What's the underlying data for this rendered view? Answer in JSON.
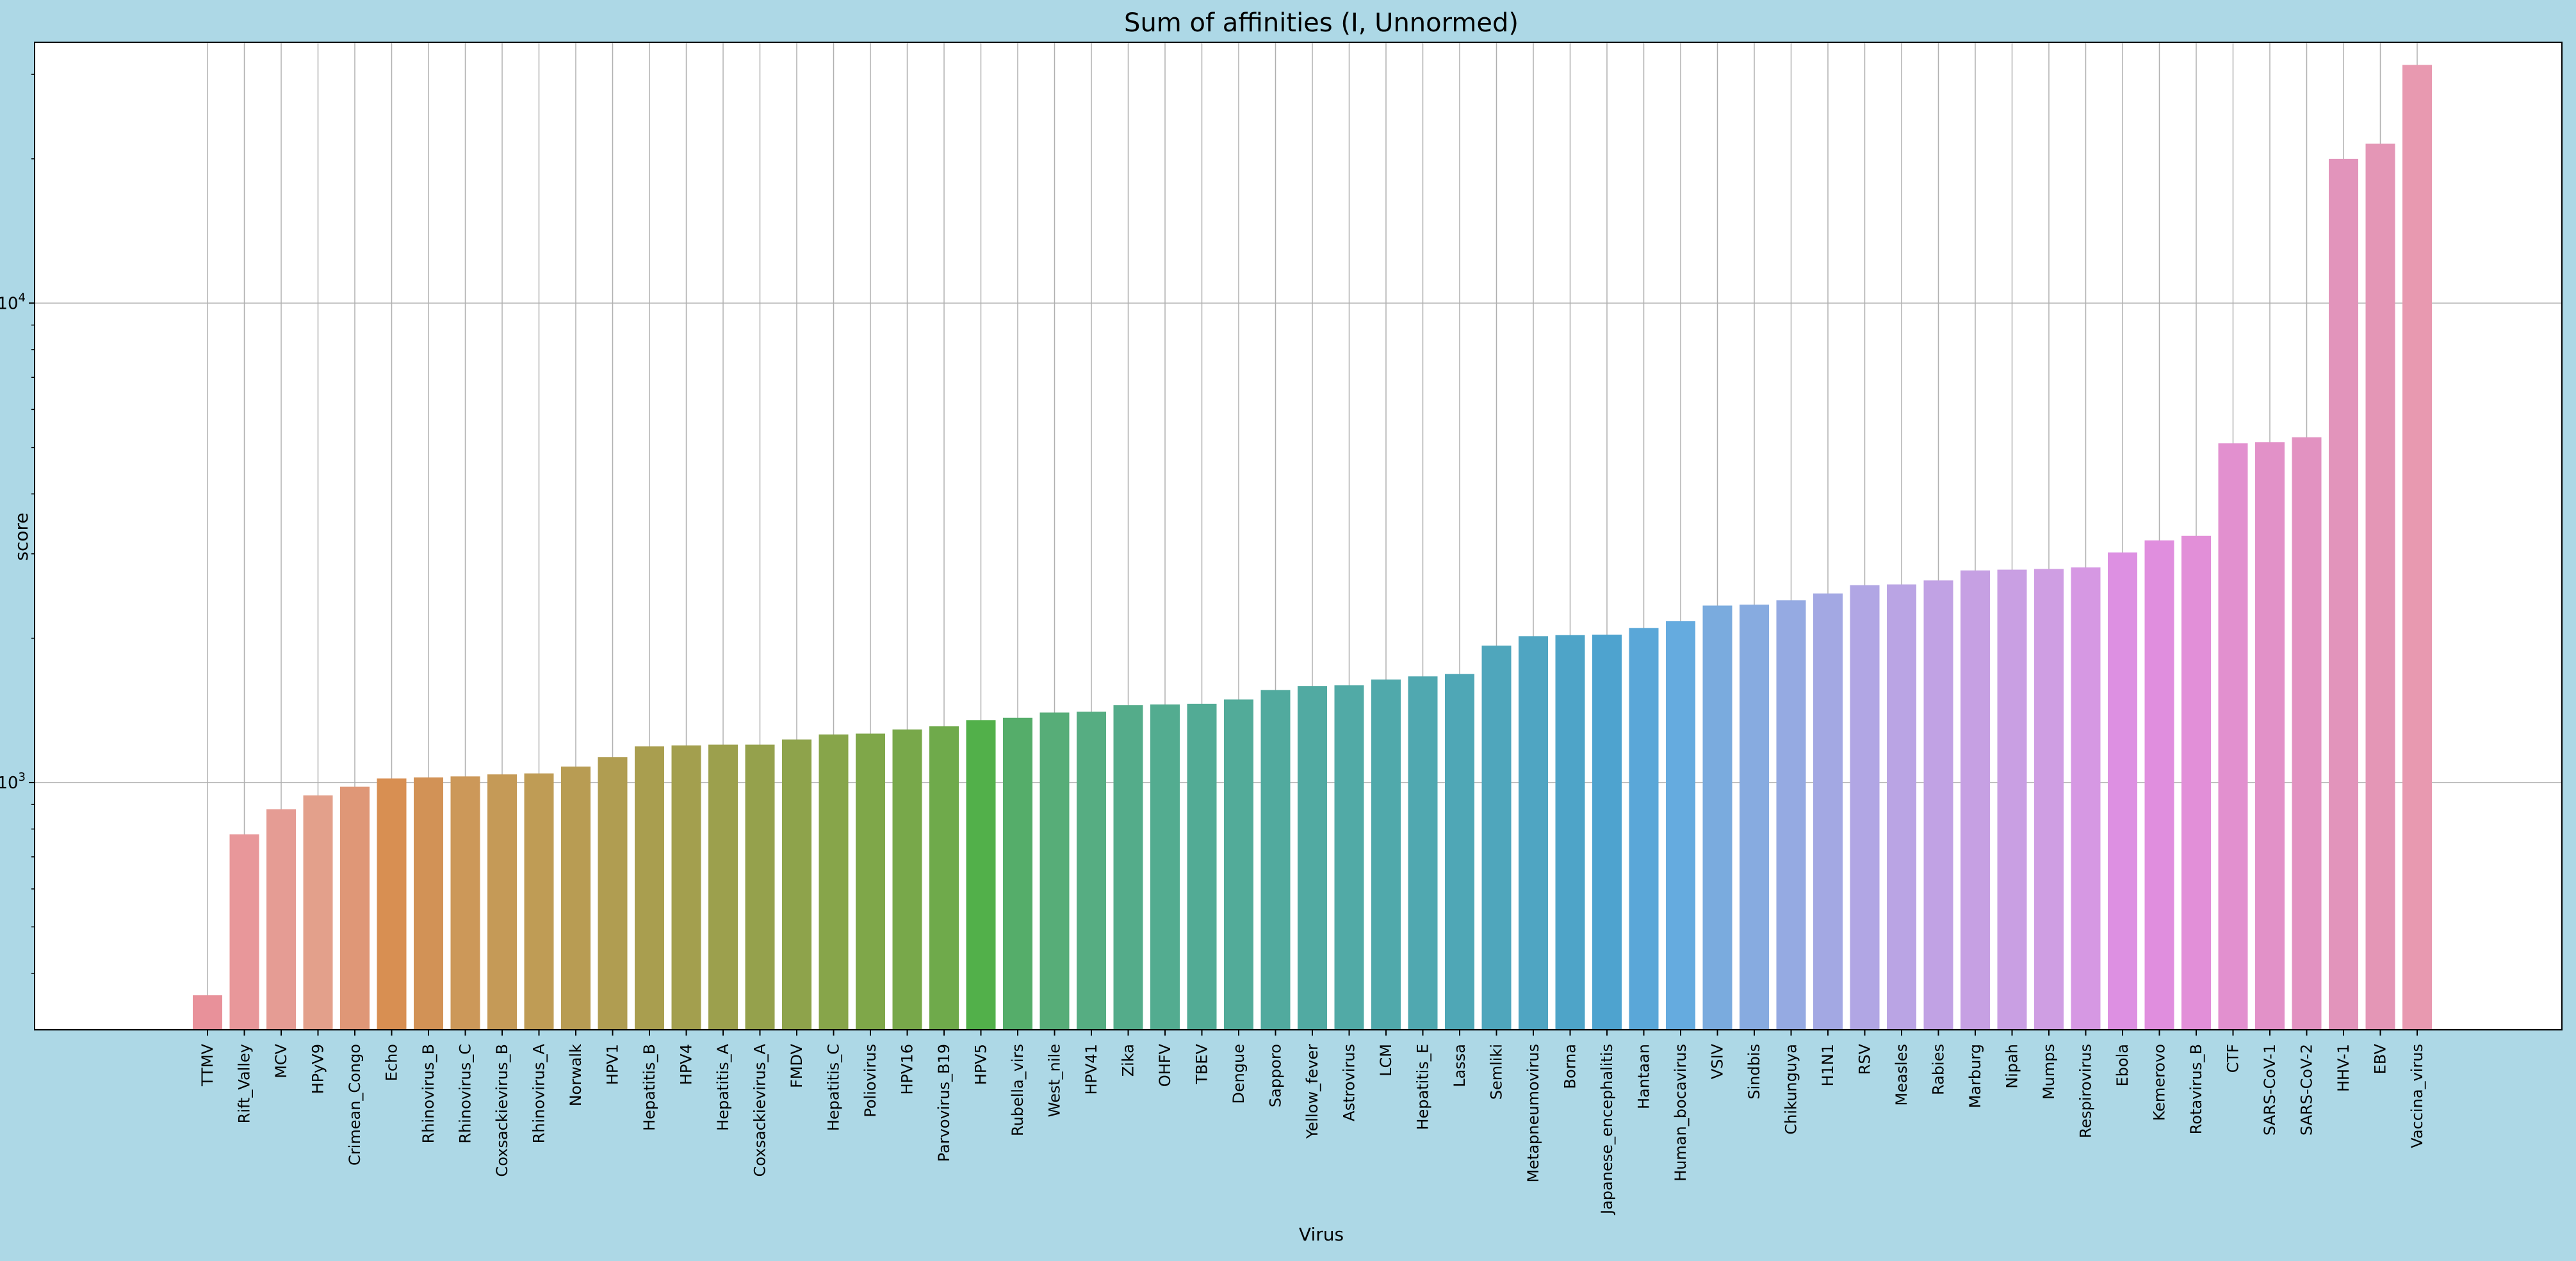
{
  "chart_data": {
    "type": "bar",
    "title": "Sum of affinities (I, Unnormed)",
    "xlabel": "Virus",
    "ylabel": "score",
    "yscale": "log",
    "ylim": [
      305,
      35000
    ],
    "yticks": [
      {
        "value": 1000,
        "base": "10",
        "exp": "3"
      },
      {
        "value": 10000,
        "base": "10",
        "exp": "4"
      }
    ],
    "grid": true,
    "background_color": "#add8e6",
    "plot_background_color": "#ffffff",
    "categories": [
      "TTMV",
      "Rift_Valley",
      "MCV",
      "HPyV9",
      "Crimean_Congo",
      "Echo",
      "Rhinovirus_B",
      "Rhinovirus_C",
      "Coxsackievirus_B",
      "Rhinovirus_A",
      "Norwalk",
      "HPV1",
      "Hepatitis_B",
      "HPV4",
      "Hepatitis_A",
      "Coxsackievirus_A",
      "FMDV",
      "Hepatitis_C",
      "Poliovirus",
      "HPV16",
      "Parvovirus_B19",
      "HPV5",
      "Rubella_virs",
      "West_nile",
      "HPV41",
      "Zika",
      "OHFV",
      "TBEV",
      "Dengue",
      "Sapporo",
      "Yellow_fever",
      "Astrovirus",
      "LCM",
      "Hepatitis_E",
      "Lassa",
      "Semliki",
      "Metapneumovirus",
      "Borna",
      "Japanese_encephalitis",
      "Hantaan",
      "Human_bocavirus",
      "VSIV",
      "Sindbis",
      "Chikunguya",
      "H1N1",
      "RSV",
      "Measles",
      "Rabies",
      "Marburg",
      "Nipah",
      "Mumps",
      "Respirovirus",
      "Ebola",
      "Kemerovo",
      "Rotavirus_B",
      "CTF",
      "SARS-CoV-1",
      "SARS-CoV-2",
      "HHV-1",
      "EBV",
      "Vaccina_virus"
    ],
    "values": [
      360,
      780,
      880,
      940,
      980,
      1020,
      1025,
      1030,
      1040,
      1045,
      1080,
      1130,
      1190,
      1195,
      1200,
      1200,
      1230,
      1260,
      1265,
      1290,
      1310,
      1350,
      1365,
      1400,
      1405,
      1450,
      1455,
      1460,
      1490,
      1560,
      1590,
      1595,
      1640,
      1665,
      1685,
      1930,
      2020,
      2030,
      2035,
      2100,
      2170,
      2340,
      2350,
      2400,
      2480,
      2580,
      2590,
      2640,
      2770,
      2780,
      2790,
      2810,
      3020,
      3200,
      3270,
      5100,
      5130,
      5250,
      20000,
      21500,
      31400
    ],
    "colors": [
      "#e8919a",
      "#e8979a",
      "#e59c94",
      "#e3a08b",
      "#df9777",
      "#d88f52",
      "#d29256",
      "#cc9859",
      "#c59a57",
      "#bf9c55",
      "#b89c53",
      "#b09d51",
      "#a99e4f",
      "#a39f4e",
      "#9ca04d",
      "#95a14c",
      "#8ea34b",
      "#87a54a",
      "#7fa749",
      "#78a84a",
      "#6faa4b",
      "#52b04a",
      "#55ad6a",
      "#57ad78",
      "#56ad82",
      "#54ac8a",
      "#53ac90",
      "#52ab95",
      "#52ab99",
      "#51aa9e",
      "#51aaa2",
      "#51aaa6",
      "#50a9ab",
      "#50a8b0",
      "#4fa7b6",
      "#4fa6bc",
      "#4fa5c2",
      "#4ea4c8",
      "#4ea3cf",
      "#5aa7d8",
      "#65abdf",
      "#7aabde",
      "#87abe0",
      "#95aae2",
      "#a3a8e3",
      "#b1a6e4",
      "#baa4e4",
      "#c1a2e4",
      "#c6a0e3",
      "#c99fe3",
      "#cf9ee3",
      "#d698e3",
      "#dd90e2",
      "#e08ede",
      "#e28fd8",
      "#e290cf",
      "#e291c8",
      "#e292c1",
      "#e294bb",
      "#e496b6",
      "#e899b0"
    ]
  }
}
